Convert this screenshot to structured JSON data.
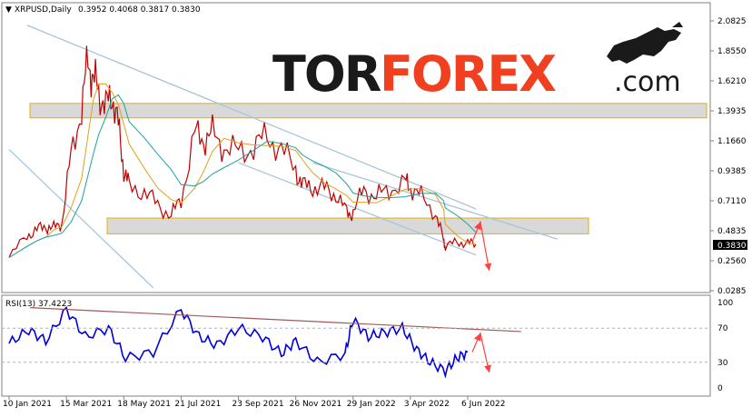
{
  "header": {
    "symbol_label": "XRPUSD,Daily",
    "ohlc_label": "0.3952 0.4068 0.3817 0.3830"
  },
  "logo": {
    "part1": "TOR",
    "part2": "FOREX",
    "suffix": ".com"
  },
  "colors": {
    "price_line": "#c00000",
    "ma_fast": "#e0a020",
    "ma_slow": "#20a0a0",
    "rsi_line": "#0000dd",
    "channel_line": "#a9c6d8",
    "zone_fill": "#d9d9d9",
    "zone_border": "#e8b000",
    "rsi_trend": "#a05a5a",
    "forecast_arrow": "#ff4040"
  },
  "chart_data": [
    {
      "type": "line",
      "name": "price",
      "x_ticks": [
        "10 Jan 2021",
        "15 Mar 2021",
        "18 May 2021",
        "21 Jul 2021",
        "23 Sep 2021",
        "26 Nov 2021",
        "29 Jan 2022",
        "3 Apr 2022",
        "6 Jun 2022"
      ],
      "y_ticks": [
        "2.0825",
        "1.8550",
        "1.6210",
        "1.3935",
        "1.1660",
        "0.9385",
        "0.7110",
        "0.4835",
        "0.2560",
        "0.0285"
      ],
      "last_price_label": "0.3830",
      "ylim": [
        0.0285,
        2.0825
      ],
      "x": [
        "2021-01-10",
        "2021-01-30",
        "2021-02-10",
        "2021-02-20",
        "2021-03-01",
        "2021-03-10",
        "2021-03-20",
        "2021-04-01",
        "2021-04-08",
        "2021-04-14",
        "2021-04-20",
        "2021-04-28",
        "2021-05-05",
        "2021-05-12",
        "2021-05-18",
        "2021-05-24",
        "2021-06-10",
        "2021-06-25",
        "2021-07-10",
        "2021-07-21",
        "2021-08-05",
        "2021-08-15",
        "2021-08-25",
        "2021-09-07",
        "2021-09-23",
        "2021-10-10",
        "2021-10-25",
        "2021-11-10",
        "2021-11-26",
        "2021-12-04",
        "2021-12-15",
        "2021-12-28",
        "2022-01-10",
        "2022-01-22",
        "2022-01-29",
        "2022-02-10",
        "2022-02-24",
        "2022-03-10",
        "2022-03-28",
        "2022-04-03",
        "2022-04-15",
        "2022-05-01",
        "2022-05-10",
        "2022-05-12",
        "2022-05-25",
        "2022-06-06",
        "2022-06-15"
      ],
      "values": [
        0.28,
        0.45,
        0.49,
        0.52,
        0.5,
        0.55,
        1.05,
        1.42,
        1.78,
        1.64,
        1.55,
        1.42,
        1.52,
        1.28,
        0.95,
        0.82,
        0.78,
        0.68,
        0.6,
        0.72,
        1.22,
        1.18,
        1.22,
        1.12,
        1.08,
        1.12,
        1.2,
        1.1,
        0.95,
        0.82,
        0.82,
        0.8,
        0.76,
        0.62,
        0.62,
        0.8,
        0.74,
        0.8,
        0.85,
        0.82,
        0.74,
        0.62,
        0.41,
        0.36,
        0.4,
        0.39,
        0.38
      ],
      "channel_upper": [
        [
          "2021-01-30",
          2.05
        ],
        [
          "2022-06-15",
          0.65
        ]
      ],
      "channel_lower": [
        [
          "2021-01-10",
          1.1
        ],
        [
          "2021-06-20",
          0.05
        ]
      ],
      "channel_lower2": [
        [
          "2021-09-23",
          1.0
        ],
        [
          "2022-06-15",
          0.3
        ]
      ],
      "resistance_zone": [
        1.34,
        1.45
      ],
      "support_zone": [
        0.46,
        0.58
      ],
      "forecast": [
        [
          "2022-06-06",
          0.4
        ],
        [
          "2022-06-15",
          0.55
        ],
        [
          "2022-06-25",
          0.18
        ]
      ]
    },
    {
      "type": "line",
      "name": "RSI(13)",
      "header_label": "RSI(13) 37.4223",
      "y_ticks": [
        "100",
        "70",
        "30",
        "0"
      ],
      "ylim": [
        0,
        100
      ],
      "levels": [
        70,
        30
      ],
      "x": [
        "2021-01-10",
        "2021-02-01",
        "2021-02-20",
        "2021-03-15",
        "2021-04-05",
        "2021-05-01",
        "2021-05-20",
        "2021-06-20",
        "2021-07-21",
        "2021-08-10",
        "2021-08-30",
        "2021-09-23",
        "2021-10-20",
        "2021-11-10",
        "2021-11-26",
        "2021-12-20",
        "2022-01-20",
        "2022-01-29",
        "2022-02-15",
        "2022-03-05",
        "2022-03-25",
        "2022-04-10",
        "2022-04-25",
        "2022-05-12",
        "2022-05-25",
        "2022-06-06"
      ],
      "values": [
        52,
        68,
        55,
        92,
        60,
        70,
        35,
        42,
        92,
        60,
        50,
        70,
        60,
        40,
        55,
        30,
        40,
        80,
        60,
        65,
        70,
        45,
        30,
        20,
        35,
        42
      ],
      "trend_line": [
        [
          "2021-03-15",
          94
        ],
        [
          "2022-06-25",
          66
        ]
      ],
      "forecast": [
        [
          "2022-06-06",
          42
        ],
        [
          "2022-06-15",
          64
        ],
        [
          "2022-06-25",
          18
        ]
      ]
    }
  ]
}
